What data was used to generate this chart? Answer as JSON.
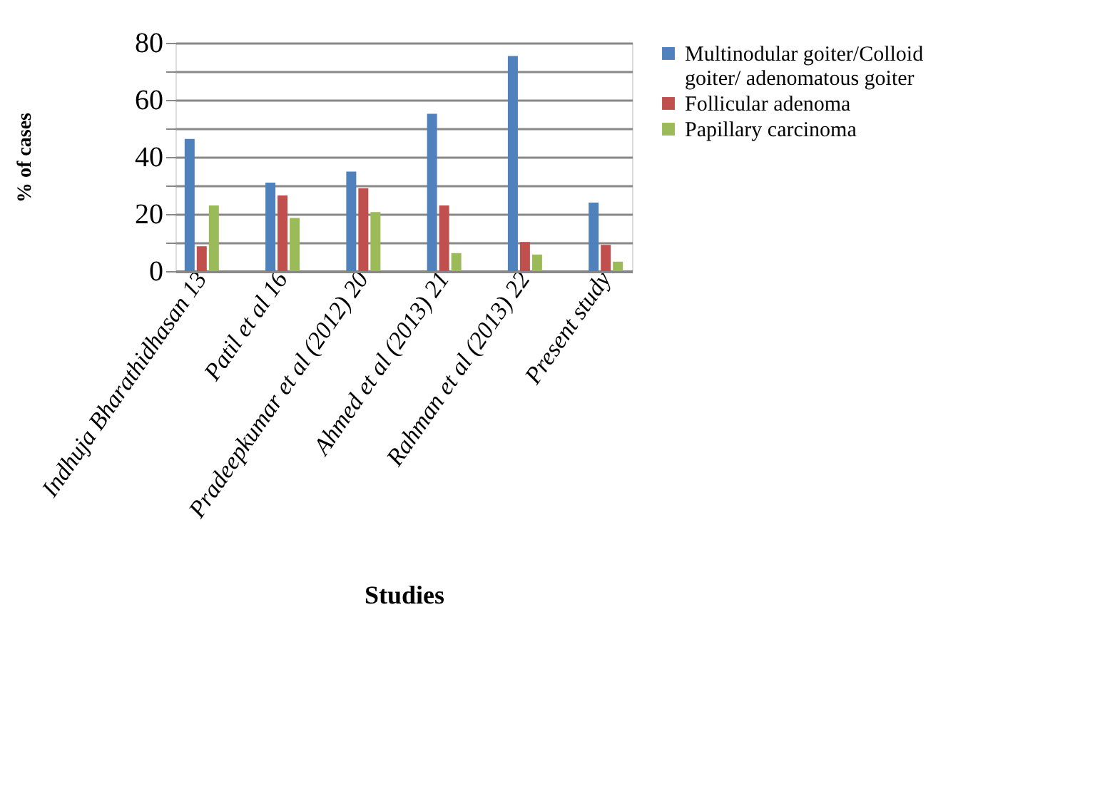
{
  "chart_data": {
    "type": "bar",
    "xlabel": "Studies",
    "ylabel": "% of cases",
    "categories": [
      "Indhuja Bharathidhasan 13",
      "Patil et al 16",
      "Pradeepkumar et al (2012)  20",
      "Ahmed et al (2013)  21",
      "Rahman et al (2013) 22",
      "Present study"
    ],
    "series": [
      {
        "name": "Multinodular goiter/Colloid goiter/ adenomatous goiter",
        "color": "#4f81bd",
        "values": [
          46.3,
          31,
          34.9,
          55.1,
          75.4,
          24
        ]
      },
      {
        "name": "Follicular adenoma",
        "color": "#c0504d",
        "values": [
          8.7,
          26.5,
          29,
          23,
          10.2,
          9.2
        ]
      },
      {
        "name": "Papillary carcinoma",
        "color": "#9bbb59",
        "values": [
          23,
          18.6,
          20.7,
          6.3,
          5.8,
          3.3
        ]
      }
    ],
    "ylim": [
      0,
      80
    ],
    "yticks": [
      0,
      {
        "value": 10,
        "label": null
      },
      20,
      {
        "value": 30,
        "label": null
      },
      40,
      {
        "value": 50,
        "label": null
      },
      60,
      {
        "value": 70,
        "label": null
      },
      80
    ],
    "grid": "y",
    "legend": "right"
  }
}
